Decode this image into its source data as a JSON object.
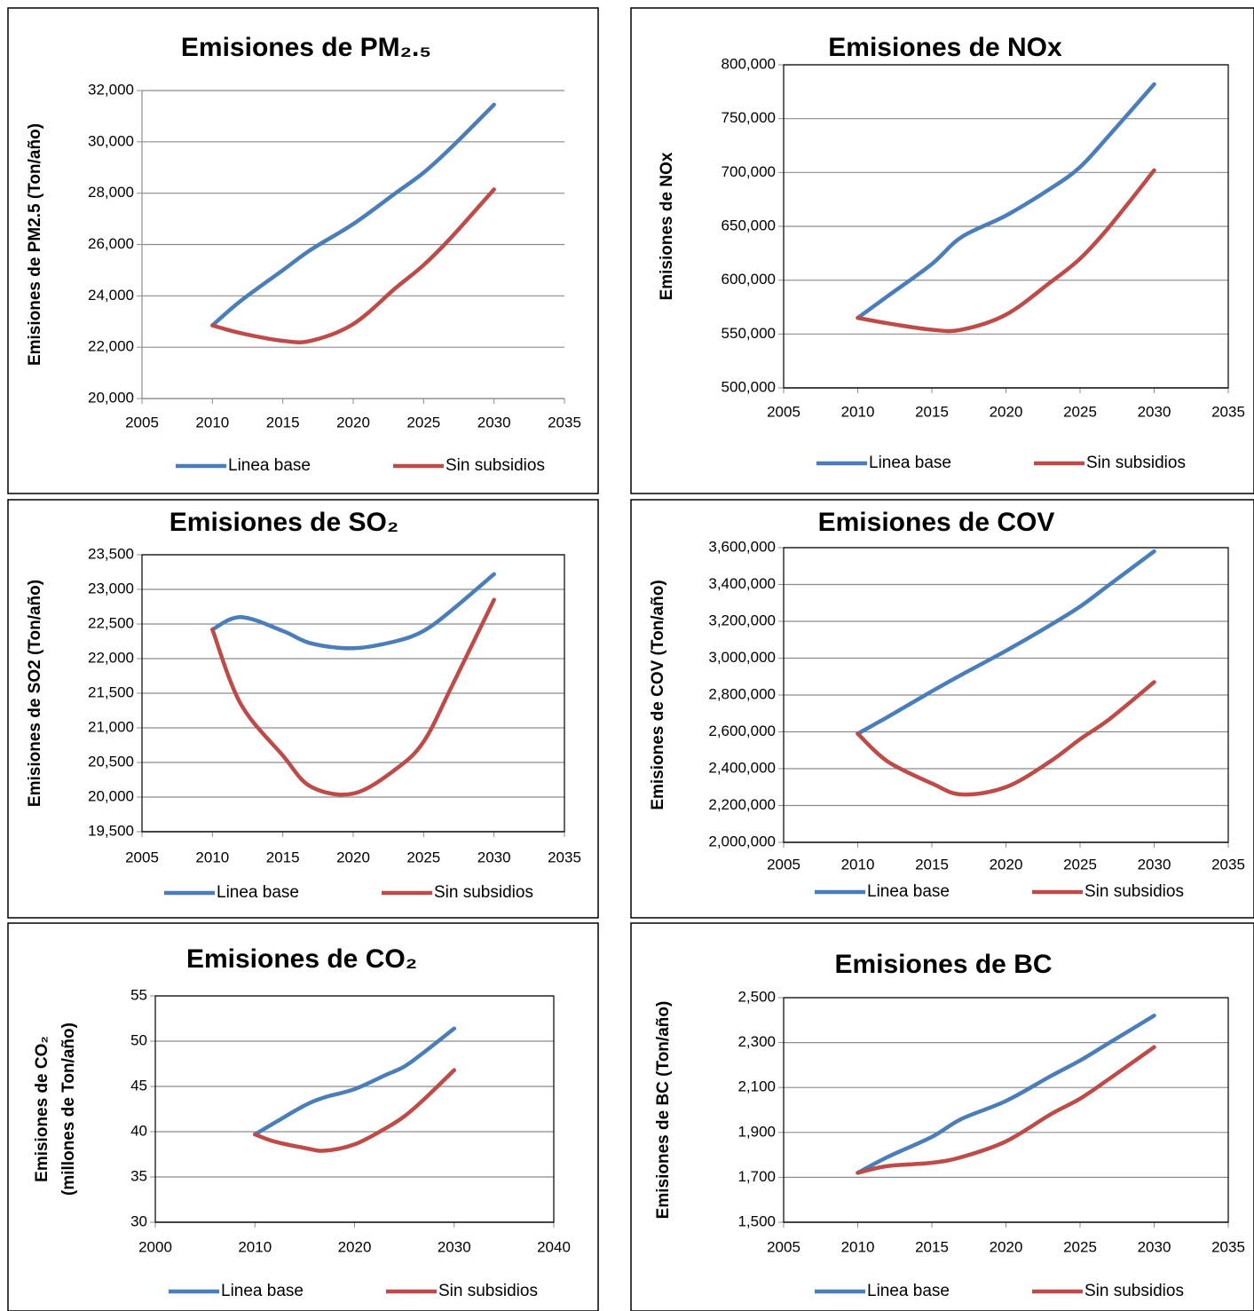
{
  "chart_data": [
    {
      "type": "line",
      "title": "Emisiones de PM₂.₅",
      "ylabel": "Emisiones de PM2.5 (Ton/año)",
      "frame": false,
      "grid": true,
      "x": [
        2010,
        2012,
        2015,
        2017,
        2020,
        2023,
        2025,
        2027,
        2030
      ],
      "series": [
        {
          "name": "Linea base",
          "color": "#4a7ebb",
          "values": [
            22850,
            23800,
            25000,
            25800,
            26800,
            28000,
            28800,
            29800,
            31450
          ]
        },
        {
          "name": "Sin subsidios",
          "color": "#be4b48",
          "values": [
            22850,
            22550,
            22250,
            22250,
            22900,
            24300,
            25200,
            26300,
            28150
          ]
        }
      ],
      "xlim": [
        2005,
        2035
      ],
      "xticks": [
        2005,
        2010,
        2015,
        2020,
        2025,
        2030,
        2035
      ],
      "ylim": [
        20000,
        32000
      ],
      "yticks": [
        {
          "value": 20000,
          "label": "20,000"
        },
        {
          "value": 22000,
          "label": "22,000"
        },
        {
          "value": 24000,
          "label": "24,000"
        },
        {
          "value": 26000,
          "label": "26,000"
        },
        {
          "value": 28000,
          "label": "28,000"
        },
        {
          "value": 30000,
          "label": "30,000"
        },
        {
          "value": 32000,
          "label": "32,000"
        }
      ]
    },
    {
      "type": "line",
      "title": "Emisiones de NOx",
      "ylabel": "Emisiones de NOx",
      "frame": true,
      "grid": true,
      "x": [
        2010,
        2012,
        2015,
        2017,
        2020,
        2023,
        2025,
        2027,
        2030
      ],
      "series": [
        {
          "name": "Linea base",
          "color": "#4a7ebb",
          "values": [
            565000,
            585000,
            615000,
            640000,
            660000,
            685000,
            705000,
            735000,
            782000
          ]
        },
        {
          "name": "Sin subsidios",
          "color": "#be4b48",
          "values": [
            565000,
            560000,
            554000,
            554000,
            568000,
            598000,
            620000,
            650000,
            702000
          ]
        }
      ],
      "xlim": [
        2005,
        2035
      ],
      "xticks": [
        2005,
        2010,
        2015,
        2020,
        2025,
        2030,
        2035
      ],
      "ylim": [
        500000,
        800000
      ],
      "yticks": [
        {
          "value": 500000,
          "label": "500,000"
        },
        {
          "value": 550000,
          "label": "550,000"
        },
        {
          "value": 600000,
          "label": "600,000"
        },
        {
          "value": 650000,
          "label": "650,000"
        },
        {
          "value": 700000,
          "label": "700,000"
        },
        {
          "value": 750000,
          "label": "750,000"
        },
        {
          "value": 800000,
          "label": "800,000"
        }
      ]
    },
    {
      "type": "line",
      "title": "Emisiones de SO₂",
      "ylabel": "Emisiones de SO2 (Ton/año)",
      "frame": true,
      "grid": true,
      "x": [
        2010,
        2012,
        2015,
        2017,
        2020,
        2023,
        2025,
        2027,
        2030
      ],
      "series": [
        {
          "name": "Linea base",
          "color": "#4a7ebb",
          "values": [
            22420,
            22600,
            22400,
            22220,
            22150,
            22250,
            22400,
            22700,
            23220
          ]
        },
        {
          "name": "Sin subsidios",
          "color": "#be4b48",
          "values": [
            22420,
            21350,
            20600,
            20150,
            20050,
            20400,
            20800,
            21600,
            22850
          ]
        }
      ],
      "xlim": [
        2005,
        2035
      ],
      "xticks": [
        2005,
        2010,
        2015,
        2020,
        2025,
        2030,
        2035
      ],
      "ylim": [
        19500,
        23500
      ],
      "yticks": [
        {
          "value": 19500,
          "label": "19,500"
        },
        {
          "value": 20000,
          "label": "20,000"
        },
        {
          "value": 20500,
          "label": "20,500"
        },
        {
          "value": 21000,
          "label": "21,000"
        },
        {
          "value": 21500,
          "label": "21,500"
        },
        {
          "value": 22000,
          "label": "22,000"
        },
        {
          "value": 22500,
          "label": "22,500"
        },
        {
          "value": 23000,
          "label": "23,000"
        },
        {
          "value": 23500,
          "label": "23,500"
        }
      ]
    },
    {
      "type": "line",
      "title": "Emisiones de COV",
      "ylabel": "Emisiones de COV (Ton/año)",
      "frame": true,
      "grid": true,
      "x": [
        2010,
        2012,
        2015,
        2017,
        2020,
        2023,
        2025,
        2027,
        2030
      ],
      "series": [
        {
          "name": "Linea base",
          "color": "#4a7ebb",
          "values": [
            2590000,
            2680000,
            2820000,
            2910000,
            3040000,
            3180000,
            3280000,
            3400000,
            3580000
          ]
        },
        {
          "name": "Sin subsidios",
          "color": "#be4b48",
          "values": [
            2590000,
            2440000,
            2320000,
            2260000,
            2300000,
            2440000,
            2560000,
            2670000,
            2870000
          ]
        }
      ],
      "xlim": [
        2005,
        2035
      ],
      "xticks": [
        2005,
        2010,
        2015,
        2020,
        2025,
        2030,
        2035
      ],
      "ylim": [
        2000000,
        3600000
      ],
      "yticks": [
        {
          "value": 2000000,
          "label": "2,000,000"
        },
        {
          "value": 2200000,
          "label": "2,200,000"
        },
        {
          "value": 2400000,
          "label": "2,400,000"
        },
        {
          "value": 2600000,
          "label": "2,600,000"
        },
        {
          "value": 2800000,
          "label": "2,800,000"
        },
        {
          "value": 3000000,
          "label": "3,000,000"
        },
        {
          "value": 3200000,
          "label": "3,200,000"
        },
        {
          "value": 3400000,
          "label": "3,400,000"
        },
        {
          "value": 3600000,
          "label": "3,600,000"
        }
      ]
    },
    {
      "type": "line",
      "title": "Emisiones de CO₂",
      "ylabel": [
        "Emisiones de CO₂",
        "(millones de Ton/año)"
      ],
      "frame": true,
      "grid": true,
      "x": [
        2010,
        2012,
        2015,
        2017,
        2020,
        2023,
        2025,
        2027,
        2030
      ],
      "series": [
        {
          "name": "Linea base",
          "color": "#4a7ebb",
          "values": [
            39.7,
            41,
            42.9,
            43.8,
            44.7,
            46.2,
            47.2,
            48.8,
            51.4
          ]
        },
        {
          "name": "Sin subsidios",
          "color": "#be4b48",
          "values": [
            39.7,
            38.9,
            38.2,
            37.9,
            38.6,
            40.3,
            41.7,
            43.6,
            46.8
          ]
        }
      ],
      "xlim": [
        2000,
        2040
      ],
      "xticks": [
        2000,
        2010,
        2020,
        2030,
        2040
      ],
      "ylim": [
        30,
        55
      ],
      "yticks": [
        30,
        35,
        40,
        45,
        50,
        55
      ]
    },
    {
      "type": "line",
      "title": "Emisiones de BC",
      "ylabel": "Emisiones de BC (Ton/año)",
      "frame": true,
      "grid": true,
      "x": [
        2010,
        2012,
        2015,
        2017,
        2020,
        2023,
        2025,
        2027,
        2030
      ],
      "series": [
        {
          "name": "Linea base",
          "color": "#4a7ebb",
          "values": [
            1720,
            1790,
            1880,
            1960,
            2040,
            2150,
            2220,
            2300,
            2420
          ]
        },
        {
          "name": "Sin subsidios",
          "color": "#be4b48",
          "values": [
            1720,
            1750,
            1765,
            1790,
            1860,
            1980,
            2050,
            2140,
            2280
          ]
        }
      ],
      "xlim": [
        2005,
        2035
      ],
      "xticks": [
        2005,
        2010,
        2015,
        2020,
        2025,
        2030,
        2035
      ],
      "ylim": [
        1500,
        2500
      ],
      "yticks": [
        {
          "value": 1500,
          "label": "1,500"
        },
        {
          "value": 1700,
          "label": "1,700"
        },
        {
          "value": 1900,
          "label": "1,900"
        },
        {
          "value": 2100,
          "label": "2,100"
        },
        {
          "value": 2300,
          "label": "2,300"
        },
        {
          "value": 2500,
          "label": "2,500"
        }
      ]
    }
  ]
}
